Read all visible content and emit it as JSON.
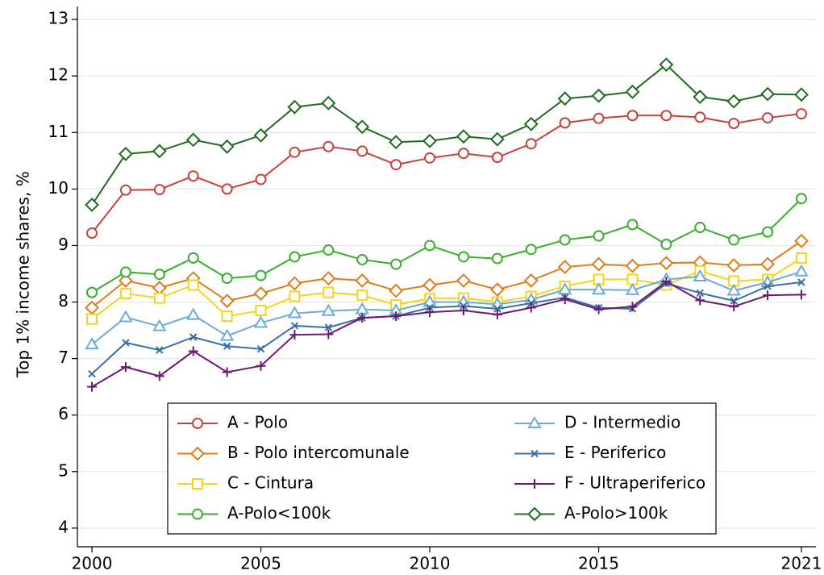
{
  "chart_data": {
    "type": "line",
    "y_label": "Top 1% income shares, %",
    "x": [
      2000,
      2001,
      2002,
      2003,
      2004,
      2005,
      2006,
      2007,
      2008,
      2009,
      2010,
      2011,
      2012,
      2013,
      2014,
      2015,
      2016,
      2017,
      2018,
      2019,
      2020,
      2021
    ],
    "xlim": [
      1999.57,
      2021.43
    ],
    "xticks": [
      2000,
      2005,
      2010,
      2015,
      2021
    ],
    "ylim": [
      3.67,
      13.23
    ],
    "yticks": [
      4,
      5,
      6,
      7,
      8,
      9,
      10,
      11,
      12,
      13
    ],
    "grid": true,
    "legend_position": "bottom",
    "legend_rows": 4,
    "series": [
      {
        "name": "A - Polo",
        "color": "#c8413b",
        "marker": "circle",
        "values": [
          9.22,
          9.98,
          9.99,
          10.23,
          10.0,
          10.17,
          10.65,
          10.75,
          10.67,
          10.43,
          10.55,
          10.63,
          10.56,
          10.8,
          11.17,
          11.25,
          11.3,
          11.3,
          11.27,
          11.16,
          11.26,
          11.33
        ]
      },
      {
        "name": "B - Polo intercomunale",
        "color": "#e07b18",
        "marker": "diamond",
        "values": [
          7.9,
          8.38,
          8.25,
          8.42,
          8.02,
          8.15,
          8.33,
          8.42,
          8.38,
          8.2,
          8.3,
          8.38,
          8.22,
          8.38,
          8.62,
          8.67,
          8.64,
          8.69,
          8.7,
          8.65,
          8.67,
          9.08
        ]
      },
      {
        "name": "C - Cintura",
        "color": "#f7d31b",
        "marker": "square",
        "values": [
          7.7,
          8.15,
          8.07,
          8.3,
          7.75,
          7.85,
          8.1,
          8.17,
          8.12,
          7.95,
          8.06,
          8.07,
          8.0,
          8.1,
          8.28,
          8.4,
          8.4,
          8.3,
          8.55,
          8.37,
          8.4,
          8.78
        ]
      },
      {
        "name": "A-Polo<100k",
        "color": "#36b02a",
        "marker": "circle",
        "values": [
          8.17,
          8.53,
          8.49,
          8.78,
          8.42,
          8.47,
          8.8,
          8.92,
          8.75,
          8.67,
          9.0,
          8.8,
          8.77,
          8.93,
          9.1,
          9.17,
          9.37,
          9.02,
          9.32,
          9.1,
          9.24,
          9.83
        ]
      },
      {
        "name": "D - Intermedio",
        "color": "#6ea9dc",
        "marker": "triangle",
        "values": [
          7.25,
          7.73,
          7.57,
          7.77,
          7.4,
          7.63,
          7.8,
          7.84,
          7.87,
          7.85,
          8.0,
          8.0,
          7.96,
          8.04,
          8.22,
          8.22,
          8.21,
          8.4,
          8.45,
          8.2,
          8.35,
          8.54
        ]
      },
      {
        "name": "E - Periferico",
        "color": "#3b6ea5",
        "marker": "x",
        "values": [
          6.73,
          7.28,
          7.15,
          7.38,
          7.22,
          7.17,
          7.58,
          7.55,
          7.72,
          7.75,
          7.9,
          7.93,
          7.88,
          7.98,
          8.08,
          7.9,
          7.88,
          8.33,
          8.16,
          8.02,
          8.28,
          8.35
        ]
      },
      {
        "name": "F - Ultraperiferico",
        "color": "#6b1a6e",
        "marker": "plus",
        "values": [
          6.5,
          6.85,
          6.69,
          7.13,
          6.76,
          6.87,
          7.42,
          7.43,
          7.72,
          7.75,
          7.82,
          7.85,
          7.78,
          7.9,
          8.05,
          7.87,
          7.92,
          8.36,
          8.03,
          7.92,
          8.12,
          8.13
        ]
      },
      {
        "name": "A-Polo>100k",
        "color": "#1f6b1f",
        "marker": "diamond",
        "values": [
          9.72,
          10.62,
          10.67,
          10.87,
          10.75,
          10.95,
          11.45,
          11.52,
          11.1,
          10.83,
          10.85,
          10.93,
          10.88,
          11.15,
          11.6,
          11.65,
          11.72,
          12.2,
          11.63,
          11.55,
          11.68,
          11.67
        ]
      }
    ]
  }
}
